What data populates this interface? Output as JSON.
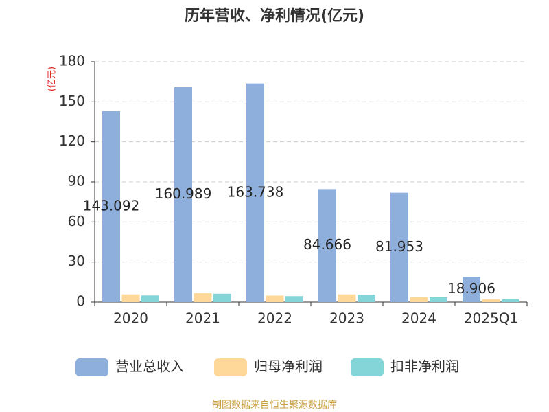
{
  "chart_data": {
    "type": "bar",
    "title": "历年营收、净利情况(亿元)",
    "y_label": "(亿元)",
    "categories": [
      "2020",
      "2021",
      "2022",
      "2023",
      "2024",
      "2025Q1"
    ],
    "series": [
      {
        "name": "营业总收入",
        "color": "#8eaedb",
        "values": [
          143.092,
          160.989,
          163.738,
          84.666,
          81.953,
          18.906
        ],
        "data_labels": true
      },
      {
        "name": "归母净利润",
        "color": "#fdd899",
        "values": [
          5.8,
          6.8,
          4.9,
          5.8,
          3.8,
          2.2
        ]
      },
      {
        "name": "扣非净利润",
        "color": "#83d5d7",
        "values": [
          5.0,
          6.3,
          4.5,
          5.6,
          3.6,
          2.1
        ]
      }
    ],
    "ylim": [
      0,
      180
    ],
    "yticks": [
      0,
      30,
      60,
      90,
      120,
      150,
      180
    ],
    "grid": true,
    "source": "制图数据来自恒生聚源数据库"
  }
}
